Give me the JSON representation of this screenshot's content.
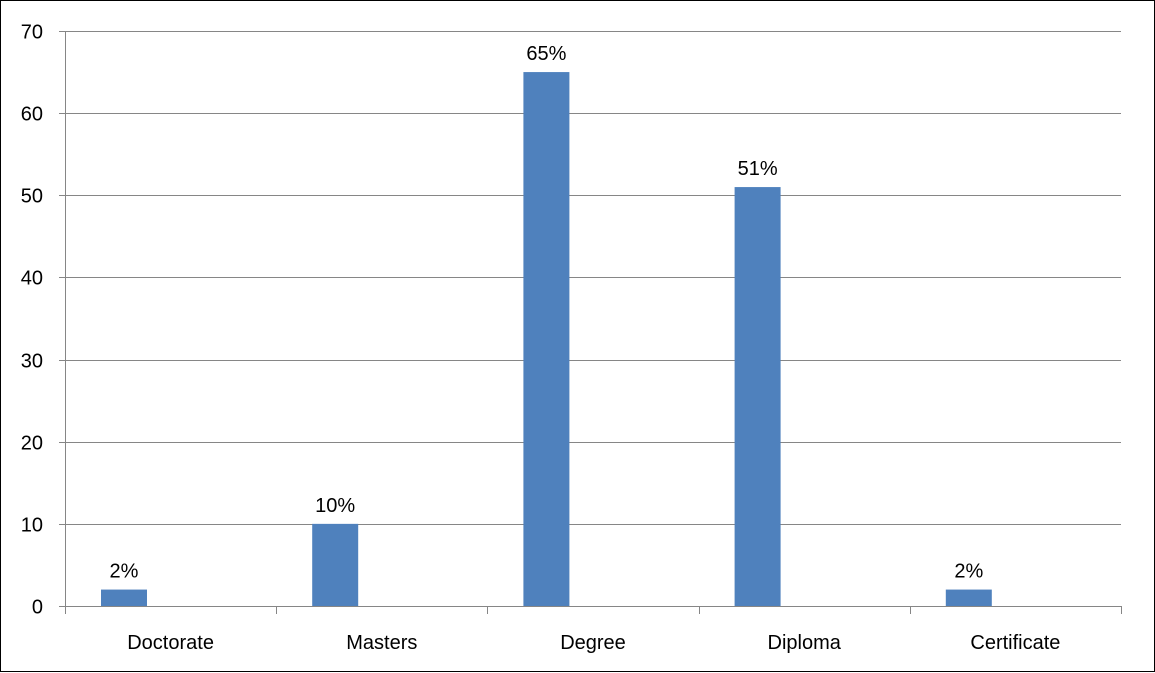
{
  "chart_data": {
    "type": "bar",
    "categories": [
      "Doctorate",
      "Masters",
      "Degree",
      "Diploma",
      "Certificate"
    ],
    "values": [
      2,
      10,
      65,
      51,
      2
    ],
    "data_labels": [
      "2%",
      "10%",
      "65%",
      "51%",
      "2%"
    ],
    "title": "",
    "xlabel": "",
    "ylabel": "",
    "ylim": [
      0,
      70
    ],
    "yticks": [
      "0",
      "10",
      "20",
      "30",
      "40",
      "50",
      "60",
      "70"
    ],
    "grid": true,
    "legend": "none",
    "bar_color": "#4F81BD",
    "grid_color": "#868686"
  }
}
